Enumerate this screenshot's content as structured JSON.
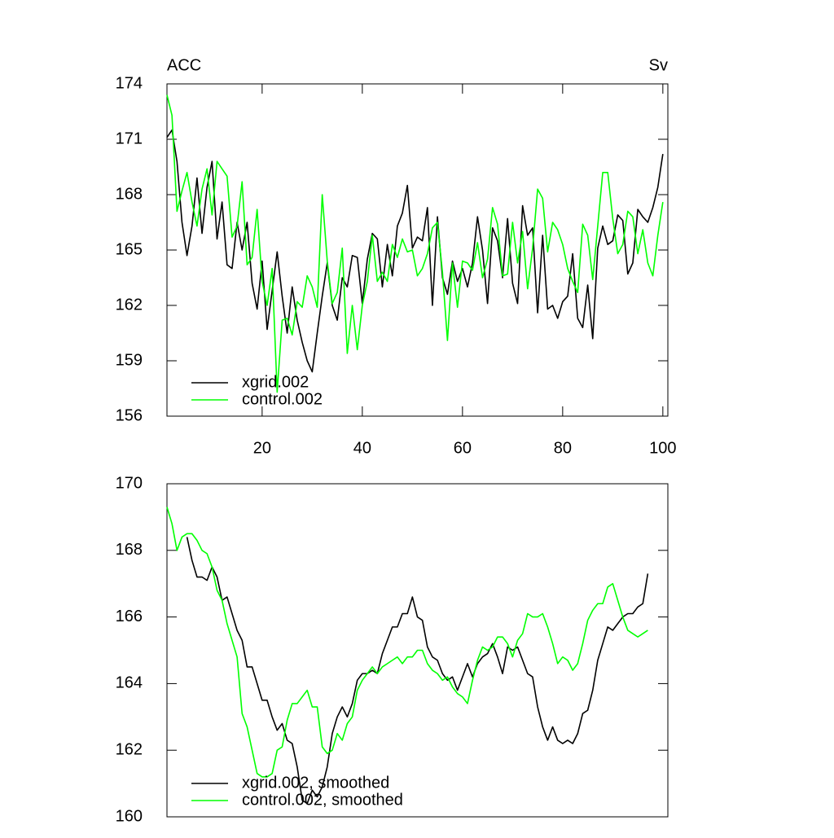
{
  "chart_data": [
    {
      "type": "line",
      "left_label": "ACC",
      "right_label": "Sv",
      "x": [
        1,
        2,
        3,
        4,
        5,
        6,
        7,
        8,
        9,
        10,
        11,
        12,
        13,
        14,
        15,
        16,
        17,
        18,
        19,
        20,
        21,
        22,
        23,
        24,
        25,
        26,
        27,
        28,
        29,
        30,
        31,
        32,
        33,
        34,
        35,
        36,
        37,
        38,
        39,
        40,
        41,
        42,
        43,
        44,
        45,
        46,
        47,
        48,
        49,
        50,
        51,
        52,
        53,
        54,
        55,
        56,
        57,
        58,
        59,
        60,
        61,
        62,
        63,
        64,
        65,
        66,
        67,
        68,
        69,
        70,
        71,
        72,
        73,
        74,
        75,
        76,
        77,
        78,
        79,
        80,
        81,
        82,
        83,
        84,
        85,
        86,
        87,
        88,
        89,
        90,
        91,
        92,
        93,
        94,
        95,
        96,
        97,
        98,
        99,
        100
      ],
      "series": [
        {
          "name": "xgrid.002",
          "color": "#000000",
          "values": [
            171.1,
            171.5,
            169.8,
            166.5,
            164.7,
            166.3,
            168.9,
            165.9,
            168.4,
            169.8,
            165.6,
            167.6,
            164.2,
            164.0,
            166.5,
            165.0,
            166.5,
            163.2,
            161.8,
            164.4,
            160.7,
            162.8,
            164.9,
            162.5,
            160.5,
            163.0,
            161.2,
            160.0,
            159.0,
            158.4,
            160.5,
            162.5,
            164.3,
            162.0,
            161.2,
            163.5,
            163.0,
            164.7,
            164.6,
            162.1,
            164.5,
            165.9,
            165.6,
            163.0,
            165.3,
            163.6,
            166.3,
            167.0,
            168.5,
            165.1,
            165.7,
            165.5,
            167.3,
            162.0,
            166.8,
            163.5,
            162.6,
            164.4,
            163.3,
            164.0,
            163.0,
            164.3,
            166.8,
            165.0,
            162.1,
            166.2,
            165.5,
            163.5,
            166.7,
            163.2,
            162.1,
            167.4,
            165.8,
            166.2,
            161.6,
            165.8,
            161.8,
            162.0,
            161.3,
            162.2,
            162.5,
            164.8,
            161.3,
            160.8,
            163.1,
            160.2,
            165.1,
            166.3,
            165.3,
            165.5,
            166.9,
            166.6,
            163.7,
            164.3,
            167.2,
            166.8,
            166.5,
            167.3,
            168.4,
            170.2
          ]
        },
        {
          "name": "control.002",
          "color": "#00ff00",
          "values": [
            173.4,
            172.3,
            167.1,
            168.2,
            169.2,
            167.6,
            166.3,
            168.3,
            169.4,
            166.9,
            169.8,
            169.4,
            169.0,
            165.7,
            166.3,
            168.7,
            164.2,
            164.6,
            167.2,
            163.3,
            162.0,
            164.0,
            157.3,
            161.2,
            161.3,
            160.4,
            162.2,
            161.9,
            163.6,
            163.0,
            161.9,
            168.0,
            164.4,
            162.1,
            162.7,
            165.1,
            159.4,
            162.0,
            159.6,
            162.0,
            163.3,
            165.8,
            163.3,
            163.8,
            163.3,
            165.3,
            164.6,
            165.6,
            164.9,
            165.0,
            163.6,
            164.0,
            164.8,
            166.2,
            166.5,
            163.8,
            160.1,
            164.3,
            161.9,
            164.4,
            164.3,
            163.9,
            165.4,
            163.5,
            164.5,
            167.3,
            166.4,
            163.6,
            163.7,
            166.5,
            164.3,
            166.0,
            162.9,
            165.1,
            168.3,
            167.8,
            164.9,
            166.5,
            166.1,
            165.3,
            164.0,
            163.3,
            162.7,
            166.4,
            165.8,
            163.4,
            166.3,
            169.2,
            169.2,
            166.7,
            164.8,
            165.3,
            167.1,
            166.8,
            164.8,
            166.1,
            164.3,
            163.6,
            165.8,
            167.6
          ]
        }
      ],
      "xlim": [
        1,
        101
      ],
      "ylim": [
        156,
        174
      ],
      "xticks": [
        20,
        40,
        60,
        80,
        100
      ],
      "yticks": [
        156,
        159,
        162,
        165,
        168,
        171,
        174
      ],
      "legend": "lower left"
    },
    {
      "type": "line",
      "x": [
        1,
        2,
        3,
        4,
        5,
        6,
        7,
        8,
        9,
        10,
        11,
        12,
        13,
        14,
        15,
        16,
        17,
        18,
        19,
        20,
        21,
        22,
        23,
        24,
        25,
        26,
        27,
        28,
        29,
        30,
        31,
        32,
        33,
        34,
        35,
        36,
        37,
        38,
        39,
        40,
        41,
        42,
        43,
        44,
        45,
        46,
        47,
        48,
        49,
        50,
        51,
        52,
        53,
        54,
        55,
        56,
        57,
        58,
        59,
        60,
        61,
        62,
        63,
        64,
        65,
        66,
        67,
        68,
        69,
        70,
        71,
        72,
        73,
        74,
        75,
        76,
        77,
        78,
        79,
        80,
        81,
        82,
        83,
        84,
        85,
        86,
        87,
        88,
        89,
        90,
        91,
        92,
        93,
        94,
        95,
        96,
        97
      ],
      "series": [
        {
          "name": "xgrid.002, smoothed",
          "color": "#000000",
          "values": [
            null,
            null,
            null,
            null,
            168.4,
            167.7,
            167.2,
            167.2,
            167.1,
            167.5,
            167.2,
            166.5,
            166.6,
            166.1,
            165.6,
            165.3,
            164.5,
            164.5,
            164.0,
            163.5,
            163.5,
            163.0,
            162.6,
            162.8,
            162.3,
            162.2,
            161.5,
            160.5,
            160.4,
            160.8,
            160.6,
            160.9,
            161.5,
            162.5,
            163.0,
            163.3,
            163.0,
            163.4,
            164.1,
            164.3,
            164.3,
            164.4,
            164.3,
            164.9,
            165.3,
            165.7,
            165.7,
            166.1,
            166.1,
            166.6,
            166.0,
            165.9,
            165.1,
            164.8,
            164.7,
            164.3,
            164.1,
            164.2,
            163.8,
            164.2,
            164.6,
            164.2,
            164.6,
            164.8,
            164.9,
            165.2,
            164.8,
            164.3,
            165.1,
            165.0,
            165.1,
            164.7,
            164.3,
            164.2,
            163.3,
            162.7,
            162.3,
            162.7,
            162.3,
            162.2,
            162.3,
            162.2,
            162.5,
            163.1,
            163.2,
            163.8,
            164.7,
            165.2,
            165.7,
            165.6,
            165.8,
            166.0,
            166.1,
            166.1,
            166.3,
            166.4,
            167.3
          ]
        },
        {
          "name": "control.002, smoothed",
          "color": "#00ff00",
          "values": [
            169.3,
            168.8,
            168.0,
            168.4,
            168.5,
            168.5,
            168.3,
            168.0,
            167.9,
            167.5,
            166.8,
            166.5,
            165.8,
            165.3,
            164.8,
            163.1,
            162.7,
            162.0,
            161.3,
            161.2,
            161.2,
            161.3,
            162.0,
            162.1,
            162.9,
            163.4,
            163.4,
            163.6,
            163.8,
            163.3,
            163.3,
            162.1,
            161.9,
            162.0,
            162.5,
            162.3,
            162.8,
            163.0,
            163.8,
            164.1,
            164.3,
            164.5,
            164.3,
            164.5,
            164.6,
            164.7,
            164.8,
            164.6,
            164.8,
            164.8,
            165.0,
            165.0,
            164.6,
            164.4,
            164.3,
            164.1,
            164.2,
            163.9,
            163.7,
            163.6,
            163.4,
            164.1,
            164.7,
            165.1,
            165.0,
            165.1,
            165.4,
            165.4,
            165.2,
            164.8,
            165.3,
            165.5,
            166.1,
            166.0,
            166.0,
            166.1,
            165.7,
            165.2,
            164.6,
            164.8,
            164.7,
            164.4,
            164.6,
            165.2,
            165.9,
            166.2,
            166.4,
            166.4,
            166.9,
            167.0,
            166.5,
            166.0,
            165.6,
            165.5,
            165.4,
            165.5,
            165.6
          ]
        }
      ],
      "xlim": [
        1,
        101
      ],
      "ylim": [
        160,
        170
      ],
      "yticks": [
        160,
        162,
        164,
        166,
        168,
        170
      ],
      "legend": "lower left"
    }
  ]
}
